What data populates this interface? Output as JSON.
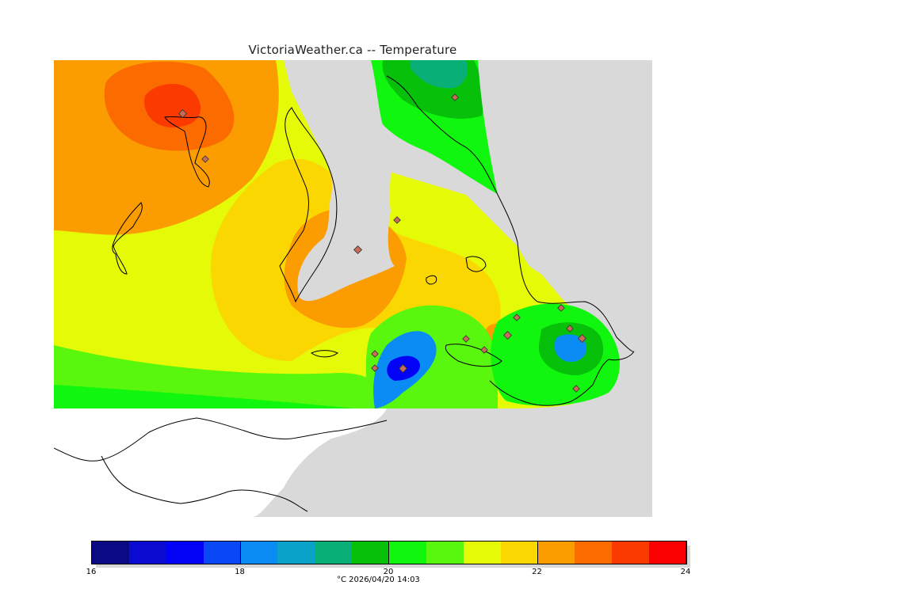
{
  "title": "VictoriaWeather.ca -- Temperature",
  "legend": {
    "units_timestamp": "°C  2026/04/20 14:03",
    "ticks": [
      "16",
      "18",
      "20",
      "22",
      "24"
    ],
    "colors": [
      "#0b0a84",
      "#0a0ad0",
      "#0202f7",
      "#0a48f5",
      "#0a8cf4",
      "#0aa2c8",
      "#08b078",
      "#06c00a",
      "#10f60e",
      "#5af70e",
      "#e4fa06",
      "#fbd702",
      "#fb9d00",
      "#fb6b00",
      "#fb3a00",
      "#fb0000"
    ]
  },
  "map": {
    "land_no_data_color": "#ffffff",
    "water_color": "#d9d9d9",
    "field_colors": {
      "max": "#fb3a00",
      "hot": "#fb6b00",
      "warm": "#fb9d00",
      "mild": "#fbd702",
      "neutral": "#e4fa06",
      "cool": "#5af70e",
      "cooler": "#10f60e",
      "cold": "#06c00a",
      "colder": "#08b078",
      "coldest": "#0a8cf4",
      "min": "#0202f7"
    }
  }
}
